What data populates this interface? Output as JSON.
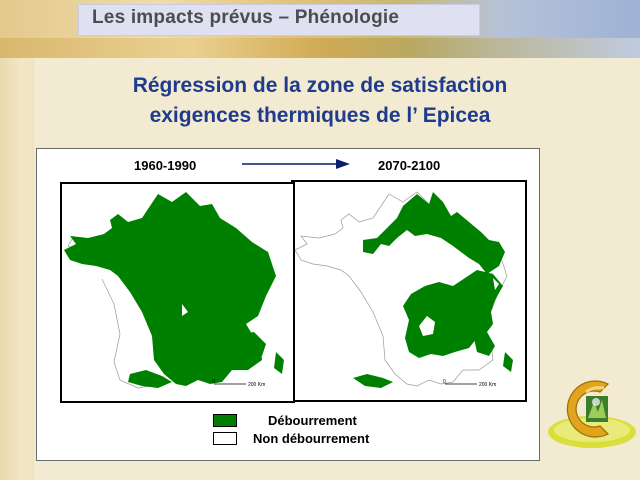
{
  "header": {
    "title": "Les impacts prévus – Phénologie"
  },
  "slide_title": {
    "line1": "Régression de la zone de satisfaction",
    "line2": "exigences thermiques de l’ Epicea"
  },
  "maps": {
    "period_start": "1960-1990",
    "period_end": "2070-2100",
    "scale_label": "200 Km",
    "scale_zero": "0"
  },
  "legend": {
    "items": [
      {
        "label": "Débourrement",
        "color": "#008000"
      },
      {
        "label": "Non débourrement",
        "color": "#ffffff"
      }
    ]
  },
  "colors": {
    "accent": "#1f3b8e",
    "map_fill": "#008000"
  },
  "logo": {
    "icon": "climate-logo-icon"
  }
}
